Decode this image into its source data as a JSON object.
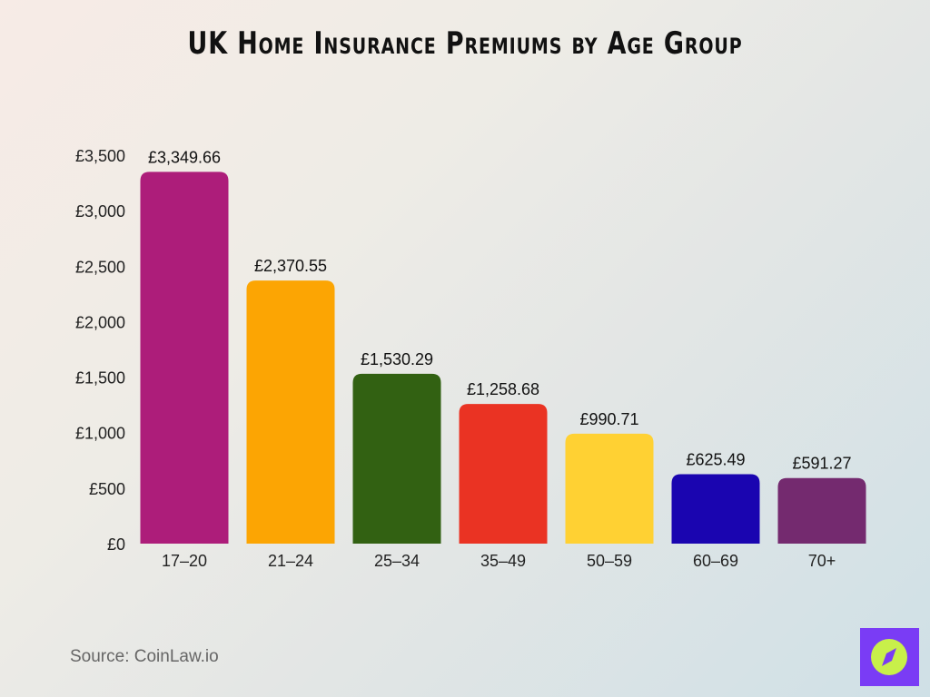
{
  "chart_data": {
    "type": "bar",
    "title": "UK Home Insurance Premiums by Age Group",
    "categories": [
      "17–20",
      "21–24",
      "25–34",
      "35–49",
      "50–59",
      "60–69",
      "70+"
    ],
    "values": [
      3349.66,
      2370.55,
      1530.29,
      1258.68,
      990.71,
      625.49,
      591.27
    ],
    "value_labels": [
      "£3,349.66",
      "£2,370.55",
      "£1,530.29",
      "£1,258.68",
      "£990.71",
      "£625.49",
      "£591.27"
    ],
    "colors": [
      "#ad1d7a",
      "#fca503",
      "#326112",
      "#ea3323",
      "#ffd133",
      "#1a05b0",
      "#742a6f"
    ],
    "ylim": [
      0,
      3500
    ],
    "yticks": [
      0,
      500,
      1000,
      1500,
      2000,
      2500,
      3000,
      3500
    ],
    "ytick_labels": [
      "£0",
      "£500",
      "£1,000",
      "£1,500",
      "£2,000",
      "£2,500",
      "£3,000",
      "£3,500"
    ],
    "xlabel": "",
    "ylabel": "",
    "grid": false,
    "legend": "none"
  },
  "source": "Source: CoinLaw.io",
  "logo": {
    "icon": "compass-icon",
    "bg": "#7a3cf5",
    "fg": "#c8f04a"
  }
}
